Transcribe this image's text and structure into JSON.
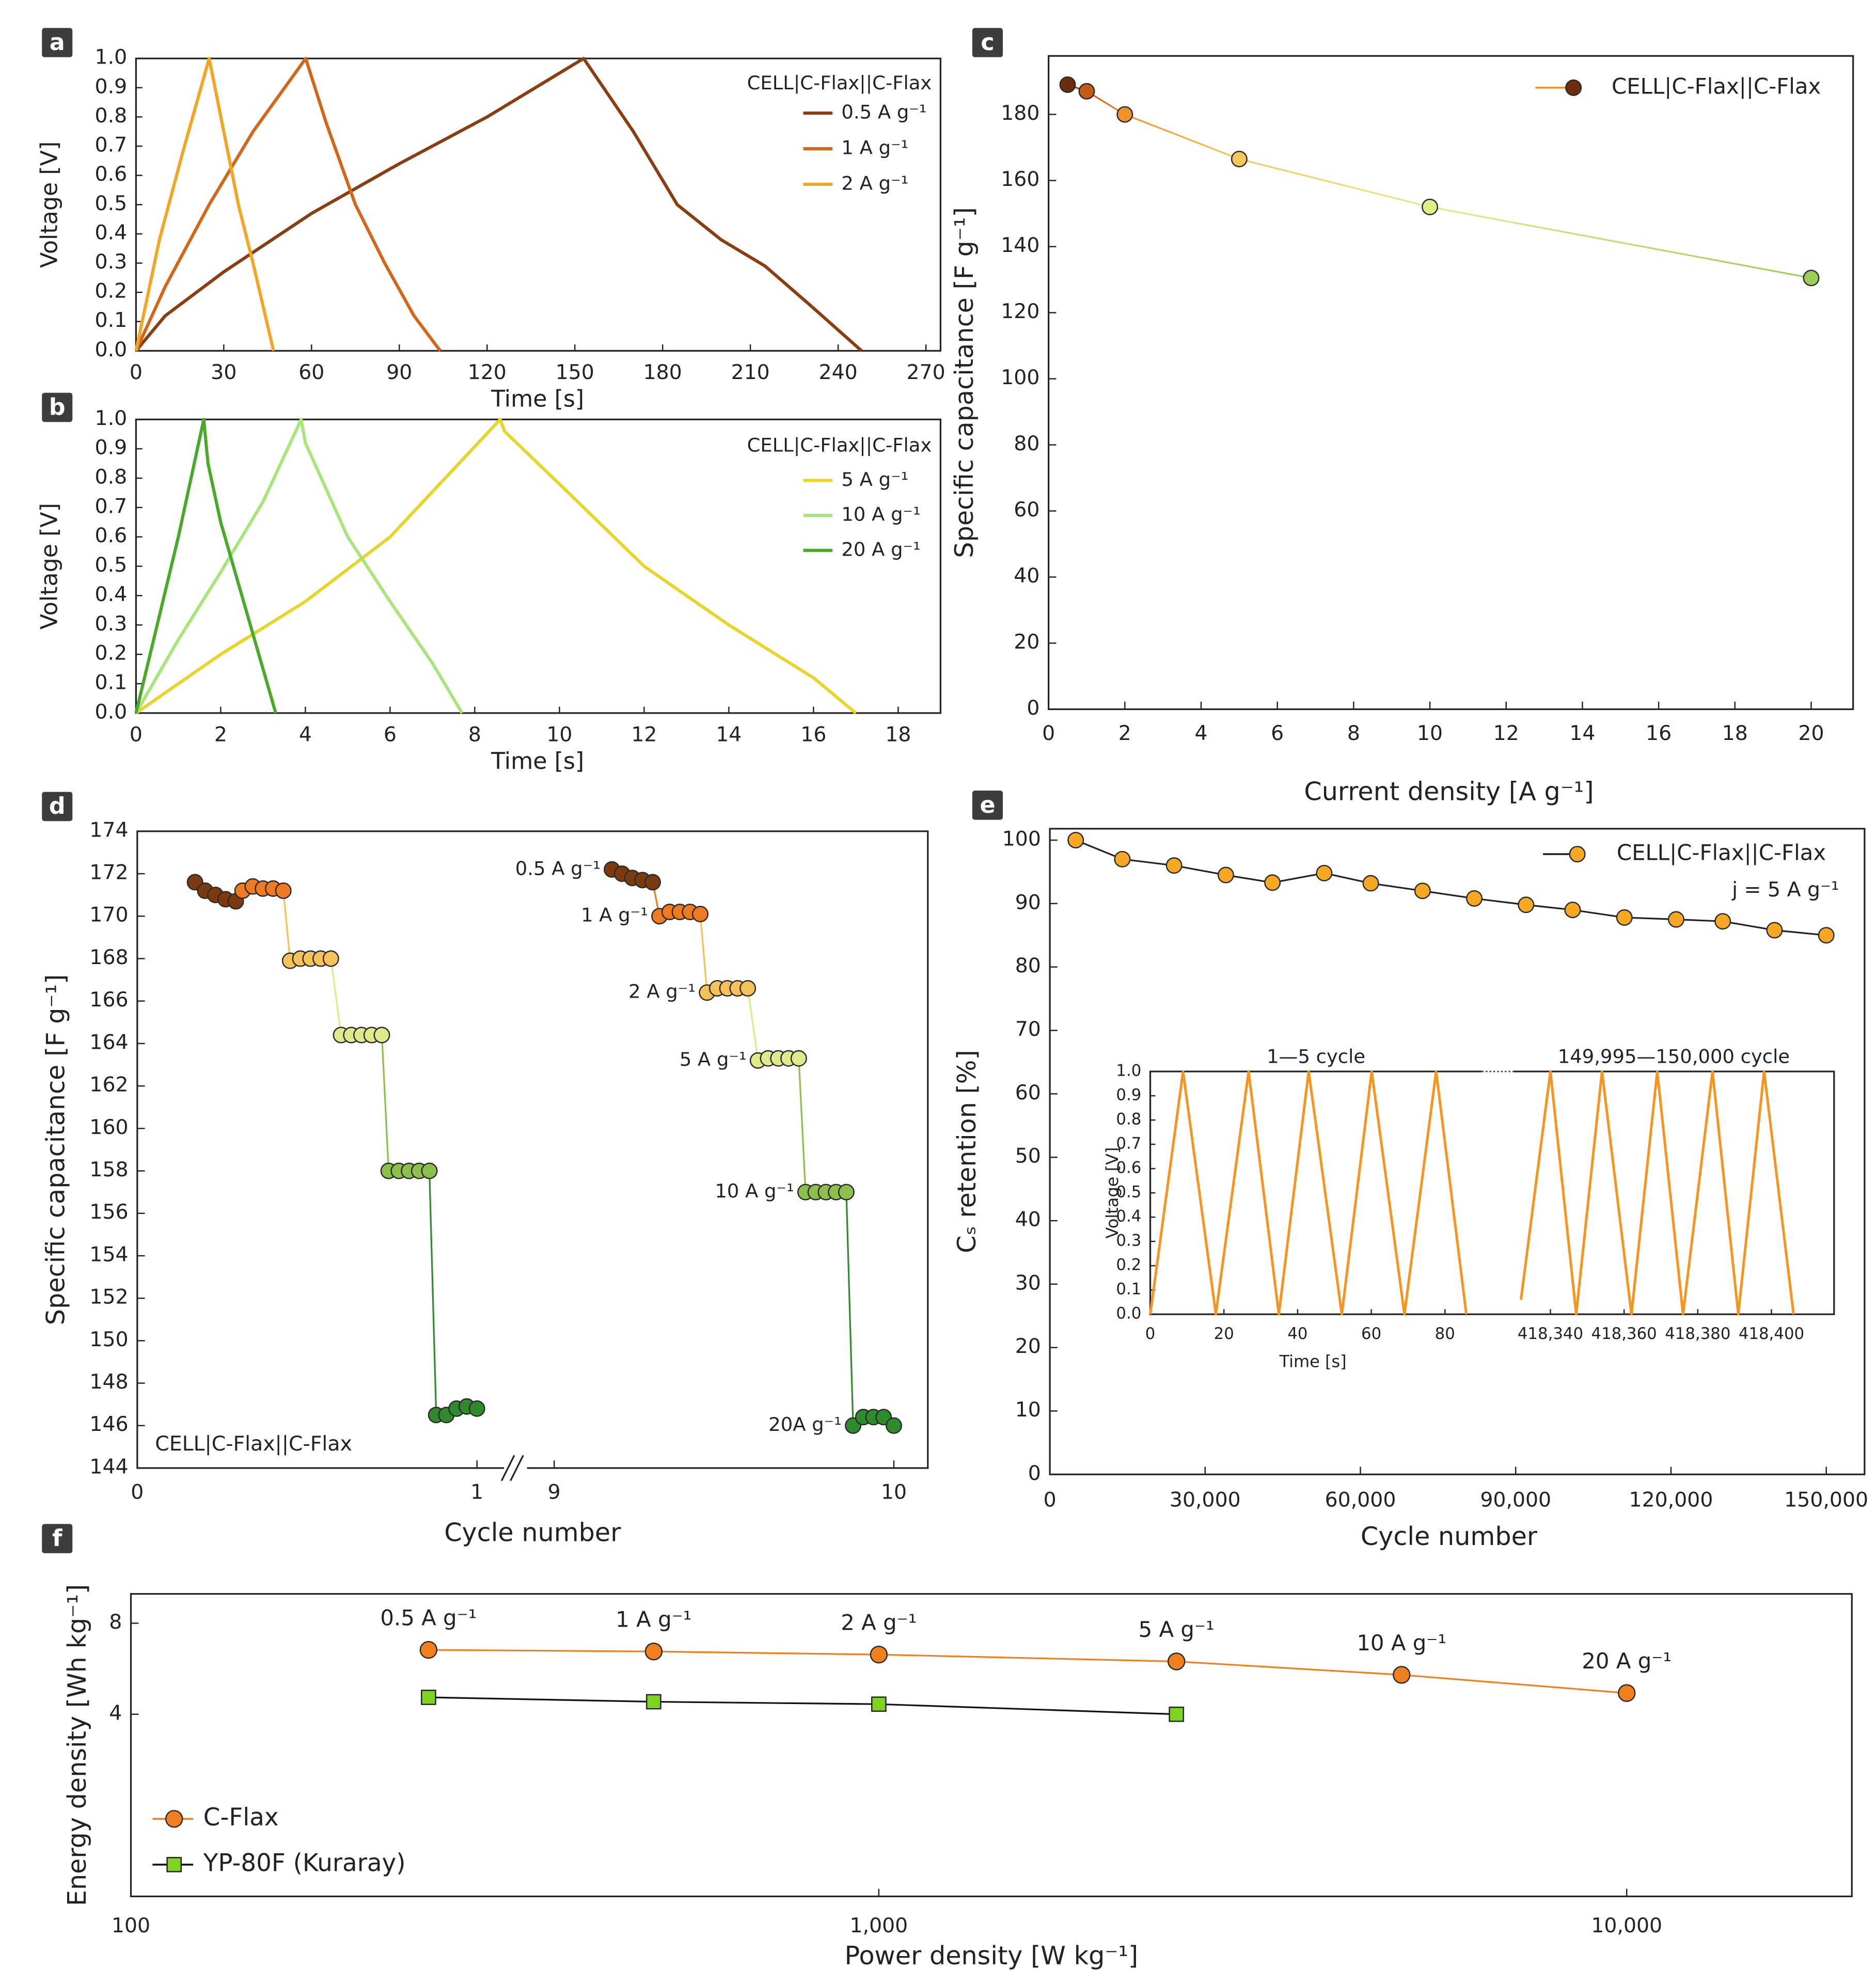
{
  "chart_data": [
    {
      "type": "line",
      "panel_label": "a",
      "xlabel": "Time [s]",
      "ylabel": "Voltage [V]",
      "xlim": [
        0,
        275
      ],
      "xticks": [
        0,
        30,
        60,
        90,
        120,
        150,
        180,
        210,
        240,
        270
      ],
      "ylim": [
        0,
        1
      ],
      "yticks": [
        {
          "value": 0,
          "label": "0.0"
        },
        0.1,
        0.2,
        0.3,
        0.4,
        0.5,
        0.6,
        0.7,
        0.8,
        0.9,
        {
          "value": 1,
          "label": "1.0"
        }
      ],
      "legend": "upper right",
      "legend_title": "CELL|C-Flax||C-Flax",
      "series": [
        {
          "name": "0.5 A g⁻¹",
          "color": "#8b3d12",
          "x": [
            0,
            10,
            30,
            60,
            90,
            120,
            153,
            170,
            185,
            200,
            215,
            230,
            248
          ],
          "values": [
            0,
            0.12,
            0.27,
            0.47,
            0.64,
            0.8,
            1.0,
            0.75,
            0.5,
            0.38,
            0.29,
            0.16,
            0
          ]
        },
        {
          "name": "1 A g⁻¹",
          "color": "#d4661a",
          "x": [
            0,
            10,
            25,
            40,
            58,
            65,
            75,
            85,
            95,
            104
          ],
          "values": [
            0,
            0.22,
            0.5,
            0.75,
            1.0,
            0.78,
            0.5,
            0.3,
            0.12,
            0
          ]
        },
        {
          "name": "2 A g⁻¹",
          "color": "#f2a623",
          "x": [
            0,
            8,
            16,
            25,
            30,
            35,
            40,
            47
          ],
          "values": [
            0,
            0.38,
            0.68,
            1.0,
            0.75,
            0.5,
            0.3,
            0
          ]
        }
      ]
    },
    {
      "type": "line",
      "panel_label": "b",
      "xlabel": "Time [s]",
      "ylabel": "Voltage [V]",
      "xlim": [
        0,
        19
      ],
      "xticks": [
        0,
        2,
        4,
        6,
        8,
        10,
        12,
        14,
        16,
        18
      ],
      "ylim": [
        0,
        1
      ],
      "yticks": [
        {
          "value": 0,
          "label": "0.0"
        },
        0.1,
        0.2,
        0.3,
        0.4,
        0.5,
        0.6,
        0.7,
        0.8,
        0.9,
        {
          "value": 1,
          "label": "1.0"
        }
      ],
      "legend": "upper right",
      "legend_title": "CELL|C-Flax||C-Flax",
      "series": [
        {
          "name": "5 A g⁻¹",
          "color": "#e8d52a",
          "x": [
            0,
            2,
            4,
            6,
            8.6,
            8.7,
            10,
            12,
            14,
            16,
            17
          ],
          "values": [
            0,
            0.2,
            0.38,
            0.6,
            1.0,
            0.96,
            0.78,
            0.5,
            0.3,
            0.12,
            0
          ]
        },
        {
          "name": "10 A g⁻¹",
          "color": "#a6e67a",
          "x": [
            0,
            1,
            2,
            3,
            3.9,
            4,
            5,
            6,
            7,
            7.7
          ],
          "values": [
            0,
            0.25,
            0.48,
            0.72,
            1.0,
            0.92,
            0.6,
            0.38,
            0.17,
            0
          ]
        },
        {
          "name": "20 A g⁻¹",
          "color": "#4aa82a",
          "x": [
            0,
            0.5,
            1,
            1.6,
            1.7,
            2,
            2.5,
            3,
            3.3
          ],
          "values": [
            0,
            0.3,
            0.6,
            1.0,
            0.85,
            0.65,
            0.4,
            0.15,
            0
          ]
        }
      ]
    },
    {
      "type": "line",
      "panel_label": "c",
      "xlabel": "Current density [A g⁻¹]",
      "ylabel": "Specific capacitance [F g⁻¹]",
      "xlim": [
        0,
        21.1
      ],
      "xticks": [
        0,
        2,
        4,
        6,
        8,
        10,
        12,
        14,
        16,
        18,
        20
      ],
      "ylim": [
        0,
        197.7
      ],
      "yticks": [
        0,
        20,
        40,
        60,
        80,
        100,
        120,
        140,
        160,
        180
      ],
      "legend": "upper right",
      "x": [
        0.5,
        1,
        2,
        5,
        10,
        20
      ],
      "point_colors": [
        "#6b2e0e",
        "#c85a18",
        "#f0922c",
        "#f5c85a",
        "#e0ee8a",
        "#9ccc5a"
      ],
      "series": [
        {
          "name": "CELL|C-Flax||C-Flax",
          "color": "#f0922c",
          "marker": "circle",
          "values": [
            189,
            187,
            180,
            166.5,
            152,
            130.5
          ]
        }
      ]
    },
    {
      "type": "line",
      "panel_label": "d",
      "xlabel": "Cycle number",
      "ylabel": "Specific capacitance [F g⁻¹]",
      "xsegments": [
        {
          "xlim": [
            0,
            1.08
          ],
          "xticks": [
            0,
            1
          ]
        },
        {
          "xlim": [
            8.92,
            10.1
          ],
          "xticks": [
            9,
            10
          ]
        }
      ],
      "ylim": [
        144,
        174
      ],
      "yticks": [
        144,
        146,
        148,
        150,
        152,
        154,
        156,
        158,
        160,
        162,
        164,
        166,
        168,
        170,
        172,
        174
      ],
      "series_labels": true,
      "connect_series": true,
      "annotations": [
        "CELL|C-Flax||C-Flax"
      ],
      "series": [
        {
          "name": "0.5 A g⁻¹",
          "color": "#7b3a10",
          "marker": "circle",
          "x": [
            0.17,
            0.2,
            0.23,
            0.26,
            0.29,
            9.17,
            9.2,
            9.23,
            9.26,
            9.29
          ],
          "values": [
            171.6,
            171.2,
            171.0,
            170.8,
            170.7,
            172.2,
            172.0,
            171.8,
            171.7,
            171.6
          ]
        },
        {
          "name": "1 A g⁻¹",
          "color": "#ee7a22",
          "marker": "circle",
          "x": [
            0.31,
            0.34,
            0.37,
            0.4,
            0.43,
            9.31,
            9.34,
            9.37,
            9.4,
            9.43
          ],
          "values": [
            171.2,
            171.4,
            171.3,
            171.3,
            171.2,
            170.0,
            170.2,
            170.2,
            170.2,
            170.1
          ]
        },
        {
          "name": "2 A g⁻¹",
          "color": "#f7c15a",
          "marker": "circle",
          "x": [
            0.45,
            0.48,
            0.51,
            0.54,
            0.57,
            9.45,
            9.48,
            9.51,
            9.54,
            9.57
          ],
          "values": [
            167.9,
            168.0,
            168.0,
            168.0,
            168.0,
            166.4,
            166.6,
            166.6,
            166.6,
            166.6
          ]
        },
        {
          "name": "5 A g⁻¹",
          "color": "#dde98a",
          "marker": "circle",
          "x": [
            0.6,
            0.63,
            0.66,
            0.69,
            0.72,
            9.6,
            9.63,
            9.66,
            9.69,
            9.72
          ],
          "values": [
            164.4,
            164.4,
            164.4,
            164.4,
            164.4,
            163.2,
            163.3,
            163.3,
            163.3,
            163.3
          ]
        },
        {
          "name": "10 A g⁻¹",
          "color": "#8cc04a",
          "marker": "circle",
          "x": [
            0.74,
            0.77,
            0.8,
            0.83,
            0.86,
            9.74,
            9.77,
            9.8,
            9.83,
            9.86
          ],
          "values": [
            158,
            158,
            158,
            158,
            158,
            157,
            157,
            157,
            157,
            157
          ]
        },
        {
          "name": "20A g⁻¹",
          "color": "#2e8a2a",
          "marker": "circle",
          "x": [
            0.88,
            0.91,
            0.94,
            0.97,
            1.0,
            9.88,
            9.91,
            9.94,
            9.97,
            10.0
          ],
          "values": [
            146.5,
            146.5,
            146.8,
            146.9,
            146.8,
            146.0,
            146.4,
            146.4,
            146.4,
            146.0
          ]
        }
      ]
    },
    {
      "type": "line",
      "panel_label": "e",
      "xlabel": "Cycle number",
      "ylabel": "Cₛ retention [%]",
      "xlim": [
        0,
        157400
      ],
      "xticks": [
        0,
        {
          "value": 30000,
          "label": "30,000"
        },
        {
          "value": 60000,
          "label": "60,000"
        },
        {
          "value": 90000,
          "label": "90,000"
        },
        {
          "value": 120000,
          "label": "120,000"
        },
        {
          "value": 150000,
          "label": "150,000"
        }
      ],
      "ylim": [
        0,
        101.8
      ],
      "yticks": [
        0,
        10,
        20,
        30,
        40,
        50,
        60,
        70,
        80,
        90,
        100
      ],
      "legend": "upper right",
      "annotations": [
        "j = 5 A g⁻¹"
      ],
      "x": [
        5000,
        14000,
        24000,
        34000,
        43000,
        53000,
        62000,
        72000,
        82000,
        92000,
        101000,
        111000,
        121000,
        130000,
        140000,
        150000
      ],
      "series": [
        {
          "name": "CELL|C-Flax||C-Flax",
          "color": "#f7a823",
          "line_color": "#222222",
          "marker": "circle",
          "values": [
            100,
            97,
            96,
            94.5,
            93.3,
            94.8,
            93.2,
            92,
            90.8,
            89.8,
            89,
            87.8,
            87.5,
            87.2,
            85.8,
            85
          ]
        }
      ]
    },
    {
      "type": "line",
      "xlabel": "Time [s]",
      "ylabel": "Voltage [V]",
      "xsegments": [
        {
          "title": "1—5 cycle",
          "xlim": [
            0,
            90
          ],
          "xticks": [
            0,
            20,
            40,
            60,
            80
          ]
        },
        {
          "title": "149,995—150,000 cycle",
          "xlim": [
            418330,
            418417
          ],
          "xticks": [
            {
              "value": 418340,
              "label": "418,340"
            },
            {
              "value": 418360,
              "label": "418,360"
            },
            {
              "value": 418380,
              "label": "418,380"
            },
            {
              "value": 418400,
              "label": "418,400"
            }
          ]
        }
      ],
      "ylim": [
        0,
        1
      ],
      "yticks": [
        {
          "value": 0,
          "label": "0.0"
        },
        0.1,
        0.2,
        0.3,
        0.4,
        0.5,
        0.6,
        0.7,
        0.8,
        0.9,
        {
          "value": 1,
          "label": "1.0"
        }
      ],
      "color": "#f7941d",
      "x": [
        0,
        8.9,
        17.8,
        26.7,
        34.9,
        43,
        52,
        60.1,
        69,
        77.6,
        85.8,
        null,
        418332,
        418340,
        418347,
        418354,
        418362,
        418369,
        418376,
        418384,
        418391,
        418398,
        418406
      ],
      "values": [
        0,
        1,
        0,
        1,
        0,
        1,
        0,
        1,
        0,
        1,
        0,
        null,
        0.06,
        1,
        0,
        1,
        0,
        1,
        0,
        1,
        0,
        1,
        0
      ]
    },
    {
      "type": "line",
      "panel_label": "f",
      "xlabel": "Power density [W kg⁻¹]",
      "ylabel": "Energy density [Wh kg⁻¹]",
      "xlog": true,
      "ylog": true,
      "xlim": [
        100,
        20000
      ],
      "xticks": [
        100,
        {
          "value": 1000,
          "label": "1,000"
        },
        {
          "value": 10000,
          "label": "10,000"
        }
      ],
      "ylim": [
        1,
        10
      ],
      "yticks": [
        4,
        8
      ],
      "legend": "lower left",
      "series": [
        {
          "name": "C-Flax",
          "color": "#f07f1e",
          "marker": "circle",
          "x": [
            250,
            500,
            1000,
            2500,
            5000,
            10000
          ],
          "values": [
            6.53,
            6.45,
            6.3,
            5.98,
            5.4,
            4.7
          ],
          "point_labels": [
            "0.5 A g⁻¹",
            "1 A g⁻¹",
            "2 A g⁻¹",
            "5 A g⁻¹",
            "10 A g⁻¹",
            "20 A g⁻¹"
          ]
        },
        {
          "name": "YP-80F (Kuraray)",
          "color": "#7ed321",
          "line_color": "#111111",
          "marker": "square",
          "x": [
            250,
            500,
            1000,
            2500
          ],
          "values": [
            4.55,
            4.4,
            4.32,
            4.0
          ]
        }
      ]
    }
  ]
}
